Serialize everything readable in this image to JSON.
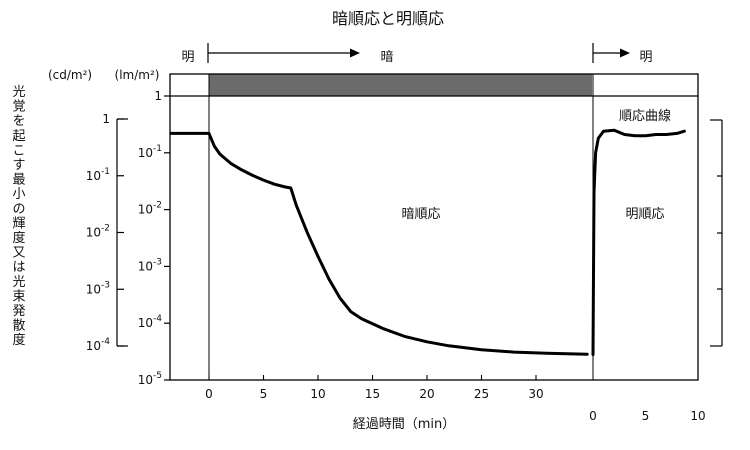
{
  "chart_data": {
    "type": "line",
    "title": "暗順応と明順応",
    "xlabel": "経過時間（min）",
    "ylabel": "光覚を起こす最小の輝度又は光束発散度",
    "y_scale": "log",
    "unit_cd": "(cd/m²)",
    "unit_lm": "(lm/m²)",
    "phase_labels": {
      "light_start": "明",
      "dark": "暗",
      "light_end": "明"
    },
    "annotations": {
      "dark_adaptation": "暗順応",
      "light_adaptation": "明順応",
      "light_curve": "順応曲線"
    },
    "x_ticks_dark": [
      "0",
      "5",
      "10",
      "15",
      "20",
      "25",
      "30"
    ],
    "x_ticks_light": [
      "0",
      "5",
      "10"
    ],
    "y_ticks_lm": [
      {
        "base": "10",
        "exp": "-5"
      },
      {
        "base": "10",
        "exp": "-4"
      },
      {
        "base": "10",
        "exp": "-3"
      },
      {
        "base": "10",
        "exp": "-2"
      },
      {
        "base": "10",
        "exp": "-1"
      },
      {
        "base": "1",
        "exp": ""
      }
    ],
    "y_ticks_cd": [
      {
        "base": "10",
        "exp": "-4"
      },
      {
        "base": "10",
        "exp": "-3"
      },
      {
        "base": "10",
        "exp": "-2"
      },
      {
        "base": "10",
        "exp": "-1"
      },
      {
        "base": "1",
        "exp": ""
      }
    ],
    "series": [
      {
        "segment": "dark",
        "points": [
          [
            -3.5,
            0.22
          ],
          [
            0,
            0.22
          ],
          [
            0.5,
            0.13
          ],
          [
            1,
            0.095
          ],
          [
            2,
            0.065
          ],
          [
            3,
            0.05
          ],
          [
            4,
            0.04
          ],
          [
            5,
            0.033
          ],
          [
            6,
            0.028
          ],
          [
            7,
            0.025
          ],
          [
            7.5,
            0.024
          ],
          [
            8,
            0.012
          ],
          [
            9,
            0.004
          ],
          [
            10,
            0.0015
          ],
          [
            11,
            0.0006
          ],
          [
            12,
            0.00028
          ],
          [
            13,
            0.00016
          ],
          [
            14,
            0.00012
          ],
          [
            16,
            8e-05
          ],
          [
            18,
            5.8e-05
          ],
          [
            20,
            4.7e-05
          ],
          [
            22,
            4e-05
          ],
          [
            25,
            3.4e-05
          ],
          [
            28,
            3.1e-05
          ],
          [
            31,
            2.95e-05
          ],
          [
            34.7,
            2.85e-05
          ]
        ]
      },
      {
        "segment": "light",
        "points": [
          [
            0,
            2.8e-05
          ],
          [
            0.1,
            0.02
          ],
          [
            0.25,
            0.1
          ],
          [
            0.5,
            0.18
          ],
          [
            1,
            0.24
          ],
          [
            2,
            0.25
          ],
          [
            3,
            0.21
          ],
          [
            4,
            0.2
          ],
          [
            5,
            0.2
          ],
          [
            6,
            0.21
          ],
          [
            7,
            0.21
          ],
          [
            8,
            0.22
          ],
          [
            8.7,
            0.24
          ]
        ]
      }
    ],
    "dark_period_bar_color": "#6b6b6b",
    "line_color": "#000000"
  }
}
